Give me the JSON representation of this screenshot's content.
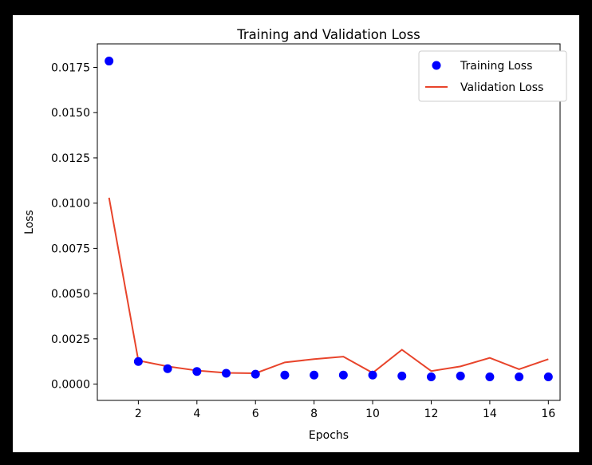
{
  "chart_data": {
    "type": "line",
    "title": "Training and Validation Loss",
    "xlabel": "Epochs",
    "ylabel": "Loss",
    "xlim": [
      0.6,
      16.4
    ],
    "ylim": [
      -0.0009,
      0.0188
    ],
    "xticks": [
      2,
      4,
      6,
      8,
      10,
      12,
      14,
      16
    ],
    "yticks": [
      0.0,
      0.0025,
      0.005,
      0.0075,
      0.01,
      0.0125,
      0.015,
      0.0175
    ],
    "ytick_labels": [
      "0.0000",
      "0.0025",
      "0.0050",
      "0.0075",
      "0.0100",
      "0.0125",
      "0.0150",
      "0.0175"
    ],
    "x": [
      1,
      2,
      3,
      4,
      5,
      6,
      7,
      8,
      9,
      10,
      11,
      12,
      13,
      14,
      15,
      16
    ],
    "series": [
      {
        "name": "Training Loss",
        "style": "scatter",
        "color": "#0000ff",
        "values": [
          0.01785,
          0.00125,
          0.00085,
          0.0007,
          0.0006,
          0.00055,
          0.0005,
          0.0005,
          0.0005,
          0.0005,
          0.00045,
          0.0004,
          0.00045,
          0.0004,
          0.0004,
          0.0004
        ]
      },
      {
        "name": "Validation Loss",
        "style": "line",
        "color": "#e8442b",
        "values": [
          0.0103,
          0.0013,
          0.00098,
          0.00075,
          0.00062,
          0.0006,
          0.0012,
          0.00138,
          0.00152,
          0.00062,
          0.0019,
          0.00072,
          0.00098,
          0.00145,
          0.00082,
          0.00138
        ]
      }
    ],
    "legend_position": "top-right",
    "grid": false
  }
}
